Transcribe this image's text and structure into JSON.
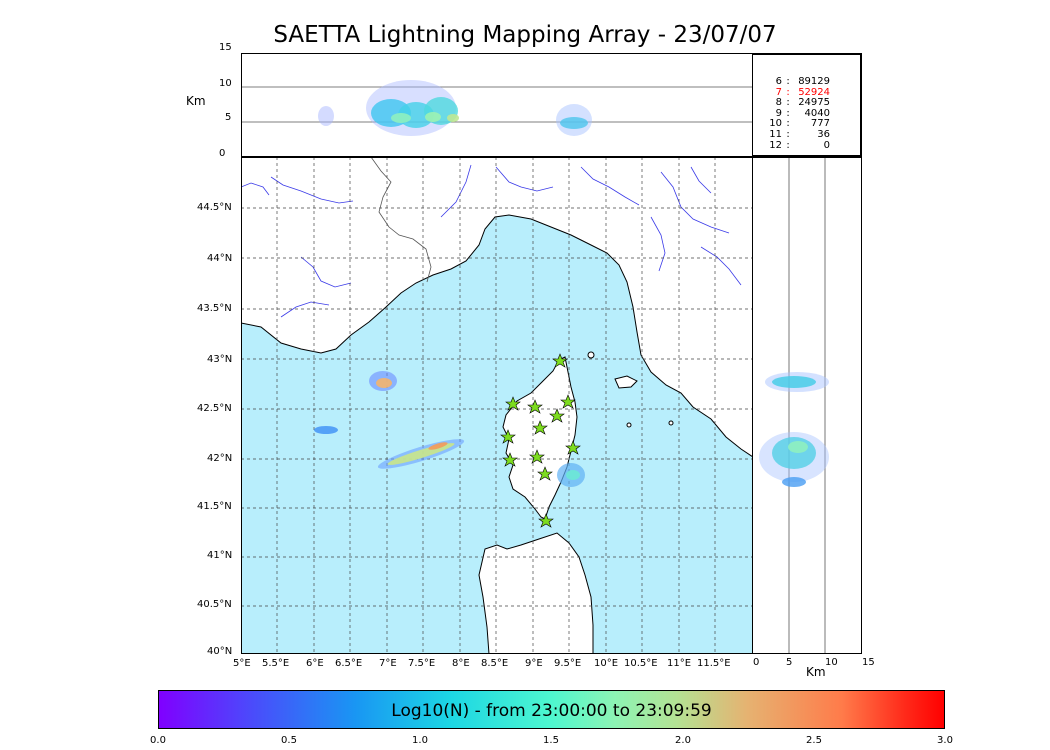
{
  "title": "SAETTA Lightning Mapping Array - 23/07/07",
  "top_panel": {
    "ylabel": "Km",
    "yticks": [
      "15",
      "10",
      "5",
      "0"
    ]
  },
  "stats": [
    {
      "level": "6",
      "sep": ":",
      "count": "89129",
      "highlight": false
    },
    {
      "level": "7",
      "sep": ":",
      "count": "52924",
      "highlight": true
    },
    {
      "level": "8",
      "sep": ":",
      "count": "24975",
      "highlight": false
    },
    {
      "level": "9",
      "sep": ":",
      "count": "4040",
      "highlight": false
    },
    {
      "level": "10",
      "sep": ":",
      "count": "777",
      "highlight": false
    },
    {
      "level": "11",
      "sep": ":",
      "count": "36",
      "highlight": false
    },
    {
      "level": "12",
      "sep": ":",
      "count": "0",
      "highlight": false
    }
  ],
  "map": {
    "lat_ticks": [
      "44.5°N",
      "44°N",
      "43.5°N",
      "43°N",
      "42.5°N",
      "42°N",
      "41.5°N",
      "41°N",
      "40.5°N",
      "40°N"
    ],
    "lon_ticks": [
      "5°E",
      "5.5°E",
      "6°E",
      "6.5°E",
      "7°E",
      "7.5°E",
      "8°E",
      "8.5°E",
      "9°E",
      "9.5°E",
      "10°E",
      "10.5°E",
      "11°E",
      "11.5°E"
    ],
    "sea_color": "#b8eefc",
    "land_color": "#ffffff",
    "river_color": "#3a3ae8",
    "station_color": "#7ddc1f"
  },
  "right_panel": {
    "xlabel": "Km",
    "xticks": [
      "0",
      "5",
      "10",
      "15"
    ]
  },
  "colorbar": {
    "label": "Log10(N) - from 23:00:00 to 23:09:59",
    "ticks": [
      "0.0",
      "0.5",
      "1.0",
      "1.5",
      "2.0",
      "2.5",
      "3.0"
    ],
    "colormap": "rainbow"
  }
}
